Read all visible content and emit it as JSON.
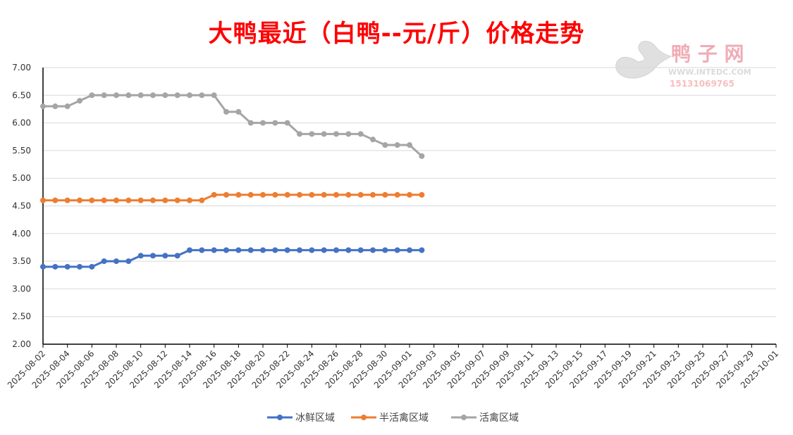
{
  "title": "大鸭最近（白鸭--元/斤）价格走势",
  "watermark": {
    "brand": "鸭 子 网",
    "url": "WWW.INTEDC.COM",
    "phone": "15131069765"
  },
  "chart_data": {
    "type": "line",
    "title": "大鸭最近（白鸭--元/斤）价格走势",
    "xlabel": "",
    "ylabel": "",
    "ylim": [
      2.0,
      7.0
    ],
    "y_ticks": [
      "2.00",
      "2.50",
      "3.00",
      "3.50",
      "4.00",
      "4.50",
      "5.00",
      "5.50",
      "6.00",
      "6.50",
      "7.00"
    ],
    "x_range": [
      "2025-08-02",
      "2025-10-01"
    ],
    "x_tick_labels": [
      "2025-08-02",
      "2025-08-04",
      "2025-08-06",
      "2025-08-08",
      "2025-08-10",
      "2025-08-12",
      "2025-08-14",
      "2025-08-16",
      "2025-08-18",
      "2025-08-20",
      "2025-08-22",
      "2025-08-24",
      "2025-08-26",
      "2025-08-28",
      "2025-08-30",
      "2025-09-01",
      "2025-09-03",
      "2025-09-05",
      "2025-09-07",
      "2025-09-09",
      "2025-09-11",
      "2025-09-13",
      "2025-09-15",
      "2025-09-17",
      "2025-09-19",
      "2025-09-21",
      "2025-09-23",
      "2025-09-25",
      "2025-09-27",
      "2025-09-29",
      "2025-10-01"
    ],
    "x": [
      "2025-08-02",
      "2025-08-03",
      "2025-08-04",
      "2025-08-05",
      "2025-08-06",
      "2025-08-07",
      "2025-08-08",
      "2025-08-09",
      "2025-08-10",
      "2025-08-11",
      "2025-08-12",
      "2025-08-13",
      "2025-08-14",
      "2025-08-15",
      "2025-08-16",
      "2025-08-17",
      "2025-08-18",
      "2025-08-19",
      "2025-08-20",
      "2025-08-21",
      "2025-08-22",
      "2025-08-23",
      "2025-08-24",
      "2025-08-25",
      "2025-08-26",
      "2025-08-27",
      "2025-08-28",
      "2025-08-29",
      "2025-08-30",
      "2025-08-31",
      "2025-09-01",
      "2025-09-02"
    ],
    "grid": "horizontal",
    "legend_position": "bottom",
    "series": [
      {
        "name": "冰鲜区域",
        "color": "#4472c4",
        "values": [
          3.4,
          3.4,
          3.4,
          3.4,
          3.4,
          3.5,
          3.5,
          3.5,
          3.6,
          3.6,
          3.6,
          3.6,
          3.7,
          3.7,
          3.7,
          3.7,
          3.7,
          3.7,
          3.7,
          3.7,
          3.7,
          3.7,
          3.7,
          3.7,
          3.7,
          3.7,
          3.7,
          3.7,
          3.7,
          3.7,
          3.7,
          3.7
        ]
      },
      {
        "name": "半活禽区域",
        "color": "#ed7d31",
        "values": [
          4.6,
          4.6,
          4.6,
          4.6,
          4.6,
          4.6,
          4.6,
          4.6,
          4.6,
          4.6,
          4.6,
          4.6,
          4.6,
          4.6,
          4.7,
          4.7,
          4.7,
          4.7,
          4.7,
          4.7,
          4.7,
          4.7,
          4.7,
          4.7,
          4.7,
          4.7,
          4.7,
          4.7,
          4.7,
          4.7,
          4.7,
          4.7
        ]
      },
      {
        "name": "活禽区域",
        "color": "#a5a5a5",
        "values": [
          6.3,
          6.3,
          6.3,
          6.4,
          6.5,
          6.5,
          6.5,
          6.5,
          6.5,
          6.5,
          6.5,
          6.5,
          6.5,
          6.5,
          6.5,
          6.2,
          6.2,
          6.0,
          6.0,
          6.0,
          6.0,
          5.8,
          5.8,
          5.8,
          5.8,
          5.8,
          5.8,
          5.7,
          5.6,
          5.6,
          5.6,
          5.4
        ]
      }
    ]
  }
}
